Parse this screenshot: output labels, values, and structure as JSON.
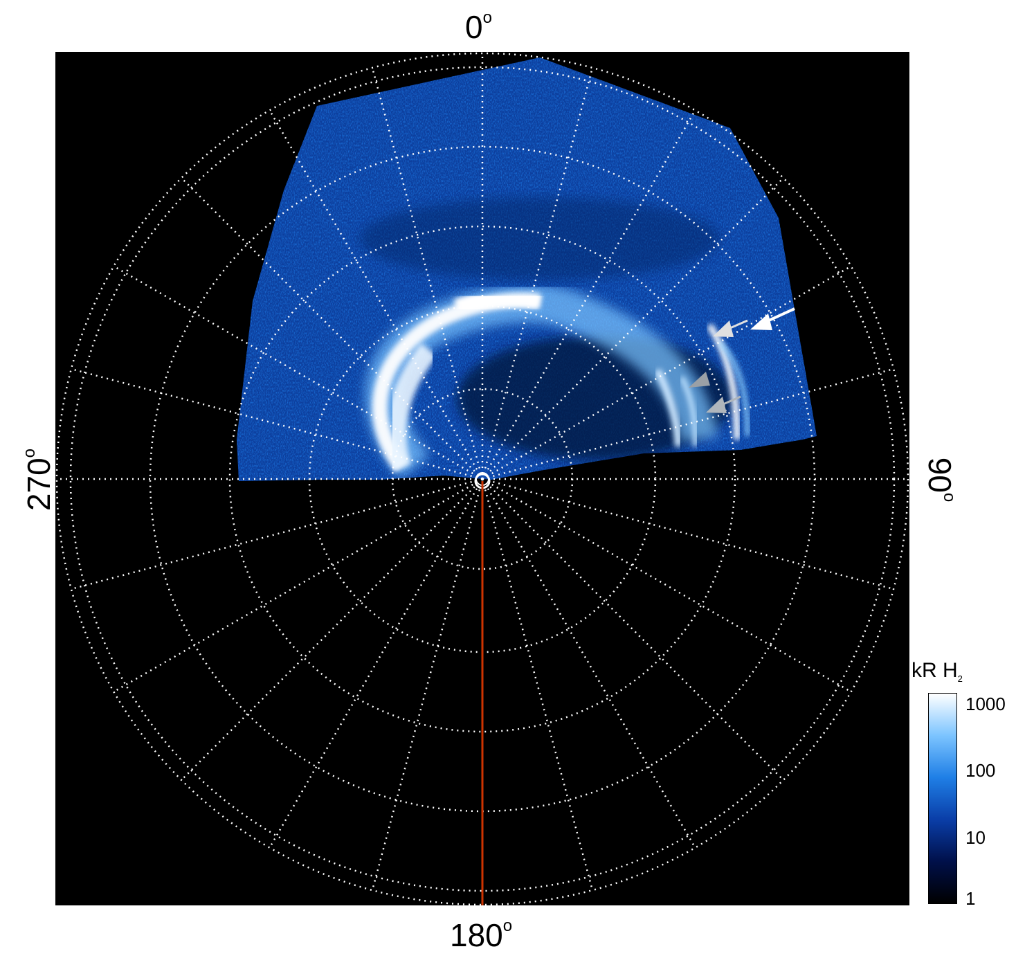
{
  "figure": {
    "azimuth_labels": {
      "top": "0",
      "right": "90",
      "bottom": "180",
      "left": "270",
      "degree_symbol": "o"
    },
    "grid": {
      "rings": 6,
      "spokes_deg": 15,
      "style": "dotted white"
    },
    "reference_line": {
      "azimuth_deg": 180,
      "color": "#cc3300"
    },
    "colorbar": {
      "title": "kR H",
      "title_subscript": "2",
      "scale": "log",
      "ticks": [
        "1000",
        "100",
        "10",
        "1"
      ],
      "colormap": [
        "#000000",
        "#00104a",
        "#0a3ea8",
        "#1f7fe6",
        "#7cc4ff",
        "#ffffff"
      ]
    },
    "annotations": [
      "white-arrow",
      "light-grey-arrow",
      "grey-arrow",
      "grey-arrow-lower"
    ]
  }
}
